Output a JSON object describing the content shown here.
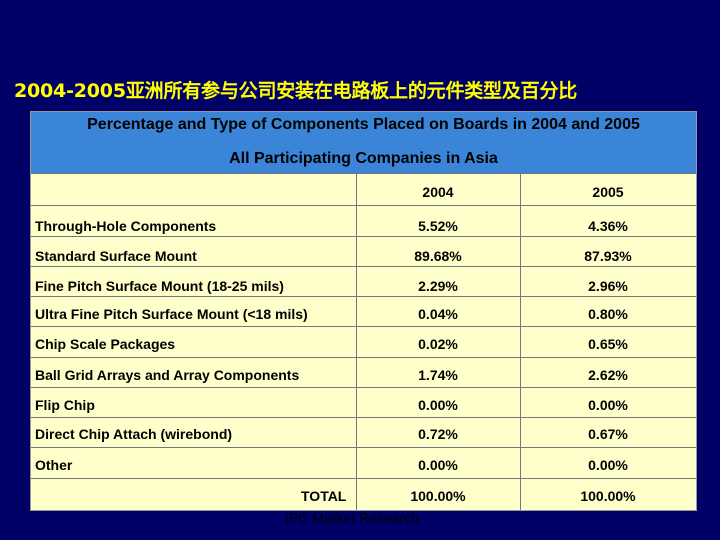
{
  "slide": {
    "title": "2004-2005亚洲所有参与公司安装在电路板上的元件类型及百分比",
    "footer": "IPC Market Research"
  },
  "table": {
    "header_line1": "Percentage and Type of Components Placed on Boards in 2004 and 2005",
    "header_line2": "All Participating Companies in Asia",
    "columns": [
      "2004",
      "2005"
    ],
    "rows": [
      {
        "label": "Through-Hole Components",
        "v2004": "5.52%",
        "v2005": "4.36%"
      },
      {
        "label": "Standard Surface Mount",
        "v2004": "89.68%",
        "v2005": "87.93%"
      },
      {
        "label": "Fine Pitch Surface Mount (18-25 mils)",
        "v2004": "2.29%",
        "v2005": "2.96%"
      },
      {
        "label": "Ultra Fine Pitch Surface Mount (<18 mils)",
        "v2004": "0.04%",
        "v2005": "0.80%"
      },
      {
        "label": "Chip Scale Packages",
        "v2004": "0.02%",
        "v2005": "0.65%"
      },
      {
        "label": "Ball Grid Arrays and Array Components",
        "v2004": "1.74%",
        "v2005": "2.62%"
      },
      {
        "label": "Flip Chip",
        "v2004": "0.00%",
        "v2005": "0.00%"
      },
      {
        "label": "Direct Chip Attach (wirebond)",
        "v2004": "0.72%",
        "v2005": "0.67%"
      },
      {
        "label": "Other",
        "v2004": "0.00%",
        "v2005": "0.00%"
      }
    ],
    "total": {
      "label": "TOTAL",
      "v2004": "100.00%",
      "v2005": "100.00%"
    }
  },
  "colors": {
    "background": "#000066",
    "title": "#ffff00",
    "header": "#3a85d8",
    "table_body": "#ffffcc"
  }
}
